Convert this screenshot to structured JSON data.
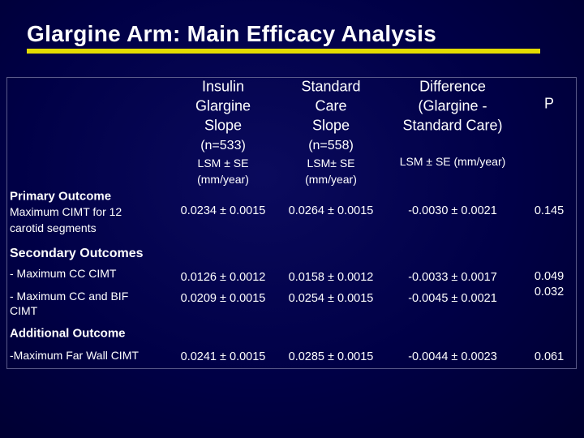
{
  "header": {
    "title": "Glargine Arm: Main Efficacy Analysis"
  },
  "table": {
    "columns": [
      {
        "lines": [
          "Insulin",
          "Glargine",
          "Slope",
          "(n=533)"
        ],
        "unit": [
          "LSM ± SE",
          "(mm/year)"
        ]
      },
      {
        "lines": [
          "Standard",
          "Care",
          "Slope",
          "(n=558)"
        ],
        "unit": [
          "LSM± SE",
          "(mm/year)"
        ]
      },
      {
        "lines": [
          "Difference",
          "(Glargine  -",
          "Standard Care)"
        ],
        "unit": [
          "LSM ± SE   (mm/year)"
        ]
      },
      {
        "lines": [
          "P"
        ]
      }
    ],
    "sections": [
      {
        "title": "Primary Outcome",
        "rows": [
          {
            "label": [
              "Maximum CIMT for 12",
              "carotid segments"
            ],
            "cells": [
              "0.0234 ± 0.0015",
              "0.0264 ± 0.0015",
              "-0.0030 ± 0.0021",
              "0.145"
            ]
          }
        ]
      },
      {
        "title": "Secondary Outcomes",
        "rows": [
          {
            "label": [
              "- Maximum  CC CIMT"
            ],
            "cells": [
              "0.0126 ± 0.0012",
              "0.0158 ± 0.0012",
              "-0.0033 ± 0.0017",
              "0.049"
            ]
          },
          {
            "label": [
              "- Maximum CC and BIF",
              "CIMT"
            ],
            "cells": [
              "0.0209 ± 0.0015",
              "0.0254 ± 0.0015",
              "-0.0045 ± 0.0021",
              "0.032"
            ]
          }
        ]
      },
      {
        "title": "Additional Outcome",
        "rows": [
          {
            "label": [
              "-Maximum Far Wall CIMT"
            ],
            "cells": [
              "0.0241 ± 0.0015",
              "0.0285 ± 0.0015",
              "-0.0044 ± 0.0023",
              "0.061"
            ]
          }
        ]
      }
    ]
  }
}
